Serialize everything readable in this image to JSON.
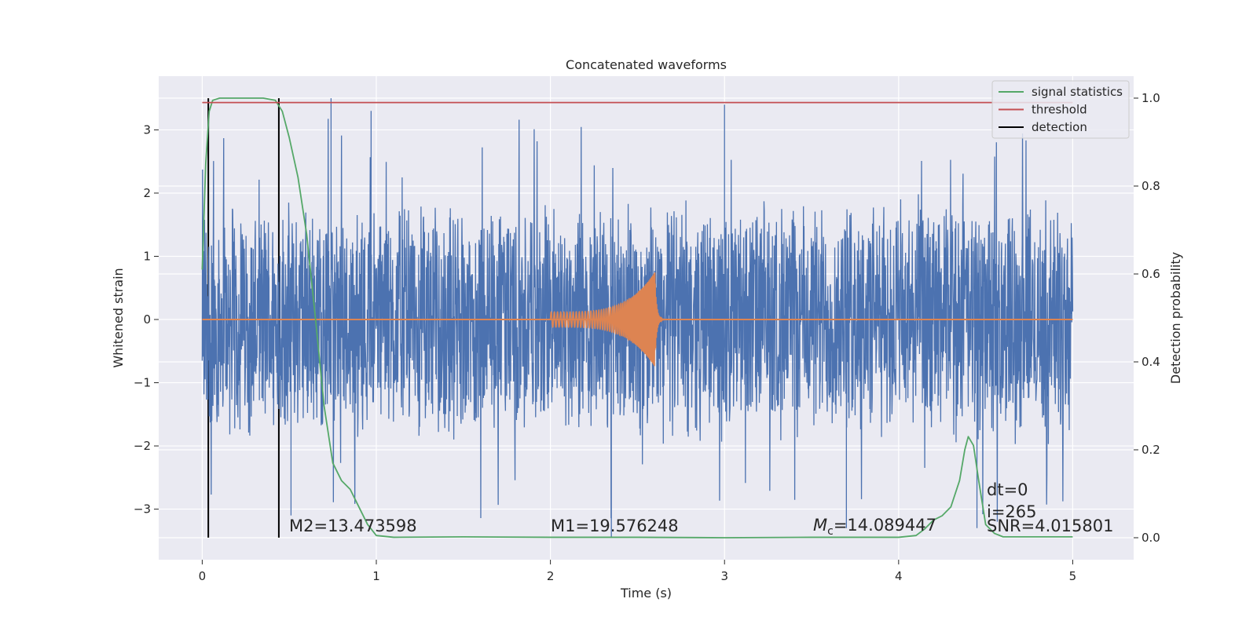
{
  "chart_data": {
    "type": "line",
    "title": "Concatenated waveforms",
    "xlabel": "Time (s)",
    "ylabel": "Whitened strain",
    "y2label": "Detection probability",
    "xlim": [
      -0.25,
      5.35
    ],
    "ylim": [
      -3.8,
      3.85
    ],
    "y2lim": [
      -0.05,
      1.05
    ],
    "x_ticks": [
      "0",
      "1",
      "2",
      "3",
      "4",
      "5"
    ],
    "y_ticks": [
      "−3",
      "−2",
      "−1",
      "0",
      "1",
      "2",
      "3"
    ],
    "y2_ticks": [
      "0.0",
      "0.2",
      "0.4",
      "0.6",
      "0.8",
      "1.0"
    ],
    "grid": true,
    "legend_position": "top-right",
    "colors": {
      "background": "#eaeaf2",
      "grid": "#ffffff",
      "strain": "#4c72b0",
      "injection": "#dd8452",
      "signal_statistics": "#55a868",
      "threshold": "#c44e52",
      "detection": "#000000"
    },
    "legend": [
      {
        "label": "signal statistics",
        "color": "#55a868"
      },
      {
        "label": "threshold",
        "color": "#c44e52"
      },
      {
        "label": "detection",
        "color": "#000000"
      }
    ],
    "series": [
      {
        "name": "signal statistics",
        "axis": "right",
        "x": [
          0.0,
          0.02,
          0.04,
          0.06,
          0.1,
          0.2,
          0.35,
          0.42,
          0.46,
          0.5,
          0.55,
          0.6,
          0.65,
          0.7,
          0.75,
          0.8,
          0.85,
          0.9,
          0.95,
          1.0,
          1.1,
          1.5,
          2.0,
          2.5,
          3.0,
          3.5,
          4.0,
          4.1,
          4.15,
          4.2,
          4.25,
          4.3,
          4.35,
          4.38,
          4.4,
          4.43,
          4.46,
          4.5,
          4.55,
          4.6,
          5.0
        ],
        "y": [
          0.61,
          0.85,
          0.97,
          0.995,
          1.0,
          1.0,
          1.0,
          0.995,
          0.97,
          0.91,
          0.82,
          0.69,
          0.5,
          0.3,
          0.17,
          0.13,
          0.11,
          0.07,
          0.03,
          0.005,
          0.001,
          0.002,
          0.001,
          0.001,
          0.0,
          0.001,
          0.001,
          0.005,
          0.02,
          0.04,
          0.05,
          0.07,
          0.13,
          0.2,
          0.23,
          0.21,
          0.13,
          0.03,
          0.01,
          0.002,
          0.002
        ]
      },
      {
        "name": "threshold",
        "axis": "right",
        "x": [
          0.0,
          5.0
        ],
        "y": [
          0.99,
          0.99
        ]
      },
      {
        "name": "detection",
        "axis": "left",
        "type": "vline",
        "x": [
          0.035,
          0.44
        ]
      },
      {
        "name": "strain",
        "axis": "left",
        "x_range": [
          0.0,
          5.0
        ],
        "envelope": 2.0,
        "peak_max": 3.5,
        "peak_min": -3.45
      },
      {
        "name": "injection",
        "axis": "left",
        "x_range": [
          2.0,
          2.6
        ],
        "peak": 0.75,
        "frequency_start_hz": 55,
        "frequency_end_hz": 190
      }
    ],
    "annotations": {
      "m2": "M2=13.473598",
      "m1": "M1=19.576248",
      "mc_symbol": "M",
      "mc_sub": "c",
      "mc_value": "=14.089447",
      "dt": "dt=0",
      "i": "i=265",
      "snr": "SNR=4.015801"
    }
  }
}
